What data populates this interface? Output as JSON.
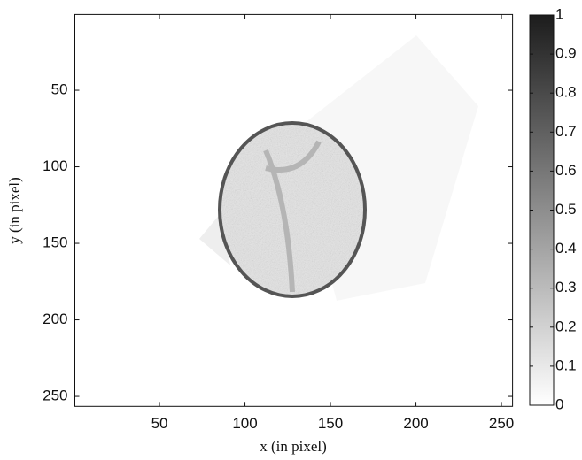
{
  "chart_data": {
    "type": "image",
    "xlabel": "x (in pixel)",
    "ylabel": "y (in pixel)",
    "xlim": [
      0.5,
      256.5
    ],
    "ylim": [
      0.5,
      256.5
    ],
    "y_reversed": true,
    "xticks": [
      50,
      100,
      150,
      200,
      250
    ],
    "yticks": [
      50,
      100,
      150,
      200,
      250
    ],
    "colormap": [
      "#ffffff",
      "#1c1c1c"
    ],
    "colorbar": {
      "clim": [
        0,
        1
      ],
      "ticks": [
        0,
        0.1,
        0.2,
        0.3,
        0.4,
        0.5,
        0.6,
        0.7,
        0.8,
        0.9,
        1
      ]
    }
  }
}
